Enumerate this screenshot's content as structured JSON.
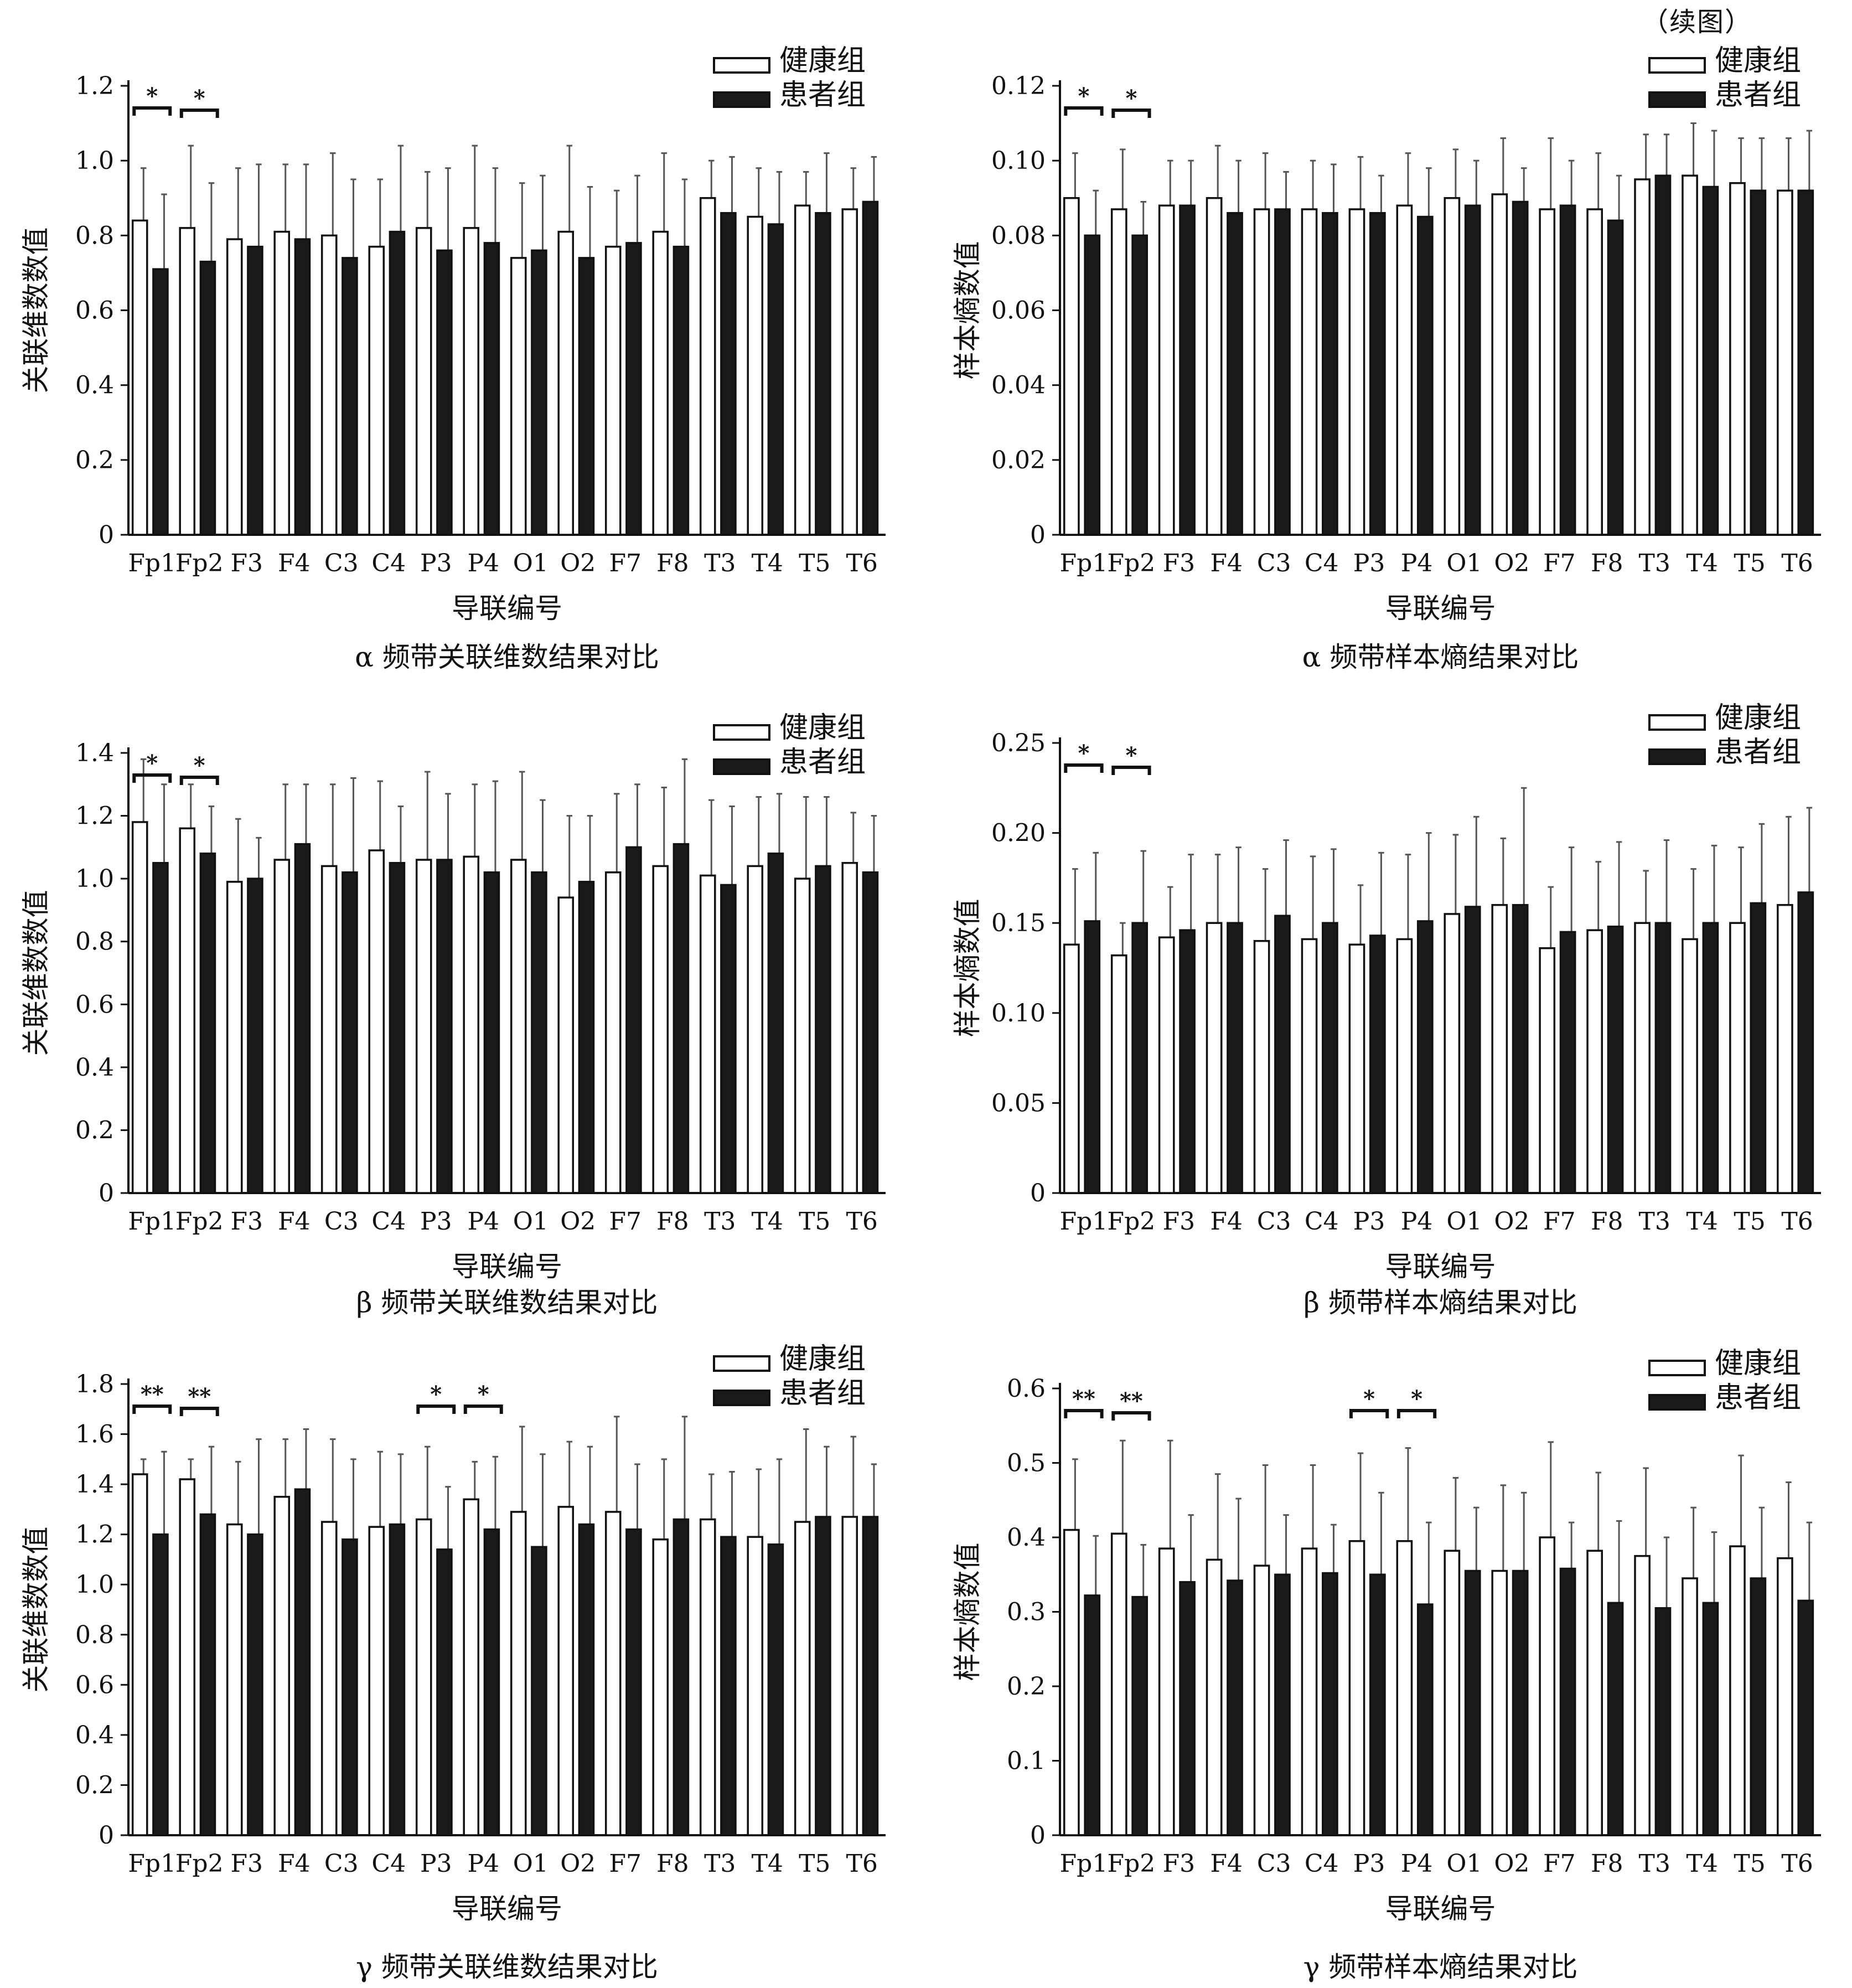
{
  "figure_note": "（续图）",
  "legend": {
    "healthy": "健康组",
    "patient": "患者组"
  },
  "colors": {
    "healthy": "#ffffff",
    "patient": "#1a1a1a",
    "error": "#555555",
    "axis": "#111111"
  },
  "xlabel": "导联编号",
  "chart_data": [
    {
      "type": "bar",
      "title": "α 频带关联维数结果对比",
      "xlabel": "导联编号",
      "ylabel": "关联维数数值",
      "ylim": [
        0,
        1.2
      ],
      "yticks": [
        "0",
        "0.2",
        "0.4",
        "0.6",
        "0.8",
        "1.0",
        "1.2"
      ],
      "ytick_values": [
        0,
        0.2,
        0.4,
        0.6,
        0.8,
        1.0,
        1.2
      ],
      "categories": [
        "Fp1",
        "Fp2",
        "F3",
        "F4",
        "C3",
        "C4",
        "P3",
        "P4",
        "O1",
        "O2",
        "F7",
        "F8",
        "T3",
        "T4",
        "T5",
        "T6"
      ],
      "series": [
        {
          "name": "健康组",
          "values": [
            0.84,
            0.82,
            0.79,
            0.81,
            0.8,
            0.77,
            0.82,
            0.82,
            0.74,
            0.81,
            0.77,
            0.81,
            0.9,
            0.85,
            0.88,
            0.87
          ],
          "errors": [
            0.14,
            0.22,
            0.19,
            0.18,
            0.22,
            0.18,
            0.15,
            0.22,
            0.2,
            0.23,
            0.15,
            0.21,
            0.1,
            0.13,
            0.09,
            0.11
          ]
        },
        {
          "name": "患者组",
          "values": [
            0.71,
            0.73,
            0.77,
            0.79,
            0.74,
            0.81,
            0.76,
            0.78,
            0.76,
            0.74,
            0.78,
            0.77,
            0.86,
            0.83,
            0.86,
            0.89
          ],
          "errors": [
            0.2,
            0.21,
            0.22,
            0.2,
            0.21,
            0.23,
            0.22,
            0.2,
            0.2,
            0.19,
            0.18,
            0.18,
            0.15,
            0.14,
            0.16,
            0.12
          ]
        }
      ],
      "significance": [
        {
          "category": "Fp1",
          "label": "*"
        },
        {
          "category": "Fp2",
          "label": "*"
        }
      ]
    },
    {
      "type": "bar",
      "title": "α 频带样本熵结果对比",
      "xlabel": "导联编号",
      "ylabel": "样本熵数值",
      "ylim": [
        0,
        0.12
      ],
      "yticks": [
        "0",
        "0.02",
        "0.04",
        "0.06",
        "0.08",
        "0.10",
        "0.12"
      ],
      "ytick_values": [
        0,
        0.02,
        0.04,
        0.06,
        0.08,
        0.1,
        0.12
      ],
      "categories": [
        "Fp1",
        "Fp2",
        "F3",
        "F4",
        "C3",
        "C4",
        "P3",
        "P4",
        "O1",
        "O2",
        "F7",
        "F8",
        "T3",
        "T4",
        "T5",
        "T6"
      ],
      "series": [
        {
          "name": "健康组",
          "values": [
            0.09,
            0.087,
            0.088,
            0.09,
            0.087,
            0.087,
            0.087,
            0.088,
            0.09,
            0.091,
            0.087,
            0.087,
            0.095,
            0.096,
            0.094,
            0.092
          ],
          "errors": [
            0.012,
            0.016,
            0.012,
            0.014,
            0.015,
            0.013,
            0.014,
            0.014,
            0.013,
            0.015,
            0.019,
            0.015,
            0.012,
            0.014,
            0.012,
            0.014
          ]
        },
        {
          "name": "患者组",
          "values": [
            0.08,
            0.08,
            0.088,
            0.086,
            0.087,
            0.086,
            0.086,
            0.085,
            0.088,
            0.089,
            0.088,
            0.084,
            0.096,
            0.093,
            0.092,
            0.092
          ],
          "errors": [
            0.012,
            0.009,
            0.012,
            0.014,
            0.01,
            0.013,
            0.01,
            0.013,
            0.012,
            0.009,
            0.012,
            0.012,
            0.011,
            0.015,
            0.014,
            0.016
          ]
        }
      ],
      "significance": [
        {
          "category": "Fp1",
          "label": "*"
        },
        {
          "category": "Fp2",
          "label": "*"
        }
      ]
    },
    {
      "type": "bar",
      "title": "β 频带关联维数结果对比",
      "xlabel": "导联编号",
      "ylabel": "关联维数数值",
      "ylim": [
        0,
        1.4
      ],
      "yticks": [
        "0",
        "0.2",
        "0.4",
        "0.6",
        "0.8",
        "1.0",
        "1.2",
        "1.4"
      ],
      "ytick_values": [
        0,
        0.2,
        0.4,
        0.6,
        0.8,
        1.0,
        1.2,
        1.4
      ],
      "categories": [
        "Fp1",
        "Fp2",
        "F3",
        "F4",
        "C3",
        "C4",
        "P3",
        "P4",
        "O1",
        "O2",
        "F7",
        "F8",
        "T3",
        "T4",
        "T5",
        "T6"
      ],
      "series": [
        {
          "name": "健康组",
          "values": [
            1.18,
            1.16,
            0.99,
            1.06,
            1.04,
            1.09,
            1.06,
            1.07,
            1.06,
            0.94,
            1.02,
            1.04,
            1.01,
            1.04,
            1.0,
            1.05
          ],
          "errors": [
            0.2,
            0.14,
            0.2,
            0.24,
            0.26,
            0.22,
            0.28,
            0.23,
            0.28,
            0.26,
            0.25,
            0.25,
            0.24,
            0.22,
            0.26,
            0.16
          ]
        },
        {
          "name": "患者组",
          "values": [
            1.05,
            1.08,
            1.0,
            1.11,
            1.02,
            1.05,
            1.06,
            1.02,
            1.02,
            0.99,
            1.1,
            1.11,
            0.98,
            1.08,
            1.04,
            1.02
          ],
          "errors": [
            0.25,
            0.15,
            0.13,
            0.19,
            0.3,
            0.18,
            0.21,
            0.29,
            0.23,
            0.21,
            0.2,
            0.27,
            0.25,
            0.19,
            0.22,
            0.18
          ]
        }
      ],
      "significance": [
        {
          "category": "Fp1",
          "label": "*"
        },
        {
          "category": "Fp2",
          "label": "*"
        }
      ]
    },
    {
      "type": "bar",
      "title": "β 频带样本熵结果对比",
      "xlabel": "导联编号",
      "ylabel": "样本熵数值",
      "ylim": [
        0,
        0.25
      ],
      "yticks": [
        "0",
        "0.05",
        "0.10",
        "0.15",
        "0.20",
        "0.25"
      ],
      "ytick_values": [
        0,
        0.05,
        0.1,
        0.15,
        0.2,
        0.25
      ],
      "categories": [
        "Fp1",
        "Fp2",
        "F3",
        "F4",
        "C3",
        "C4",
        "P3",
        "P4",
        "O1",
        "O2",
        "F7",
        "F8",
        "T3",
        "T4",
        "T5",
        "T6"
      ],
      "series": [
        {
          "name": "健康组",
          "values": [
            0.138,
            0.132,
            0.142,
            0.15,
            0.14,
            0.141,
            0.138,
            0.141,
            0.155,
            0.16,
            0.136,
            0.146,
            0.15,
            0.141,
            0.15,
            0.16
          ],
          "errors": [
            0.042,
            0.018,
            0.028,
            0.038,
            0.04,
            0.046,
            0.033,
            0.047,
            0.044,
            0.037,
            0.034,
            0.038,
            0.029,
            0.039,
            0.042,
            0.049
          ]
        },
        {
          "name": "患者组",
          "values": [
            0.151,
            0.15,
            0.146,
            0.15,
            0.154,
            0.15,
            0.143,
            0.151,
            0.159,
            0.16,
            0.145,
            0.148,
            0.15,
            0.15,
            0.161,
            0.167
          ],
          "errors": [
            0.038,
            0.04,
            0.042,
            0.042,
            0.042,
            0.041,
            0.046,
            0.049,
            0.05,
            0.065,
            0.047,
            0.047,
            0.046,
            0.043,
            0.044,
            0.047
          ]
        }
      ],
      "significance": [
        {
          "category": "Fp1",
          "label": "*"
        },
        {
          "category": "Fp2",
          "label": "*"
        }
      ]
    },
    {
      "type": "bar",
      "title": "γ 频带关联维数结果对比",
      "xlabel": "导联编号",
      "ylabel": "关联维数数值",
      "ylim": [
        0,
        1.8
      ],
      "yticks": [
        "0",
        "0.2",
        "0.4",
        "0.6",
        "0.8",
        "1.0",
        "1.2",
        "1.4",
        "1.6",
        "1.8"
      ],
      "ytick_values": [
        0,
        0.2,
        0.4,
        0.6,
        0.8,
        1.0,
        1.2,
        1.4,
        1.6,
        1.8
      ],
      "categories": [
        "Fp1",
        "Fp2",
        "F3",
        "F4",
        "C3",
        "C4",
        "P3",
        "P4",
        "O1",
        "O2",
        "F7",
        "F8",
        "T3",
        "T4",
        "T5",
        "T6"
      ],
      "series": [
        {
          "name": "健康组",
          "values": [
            1.44,
            1.42,
            1.24,
            1.35,
            1.25,
            1.23,
            1.26,
            1.34,
            1.29,
            1.31,
            1.29,
            1.18,
            1.26,
            1.19,
            1.25,
            1.27
          ],
          "errors": [
            0.06,
            0.08,
            0.25,
            0.23,
            0.33,
            0.3,
            0.29,
            0.15,
            0.34,
            0.26,
            0.38,
            0.32,
            0.18,
            0.27,
            0.37,
            0.32
          ]
        },
        {
          "name": "患者组",
          "values": [
            1.2,
            1.28,
            1.2,
            1.38,
            1.18,
            1.24,
            1.14,
            1.22,
            1.15,
            1.24,
            1.22,
            1.26,
            1.19,
            1.16,
            1.27,
            1.27
          ],
          "errors": [
            0.33,
            0.27,
            0.38,
            0.24,
            0.32,
            0.28,
            0.25,
            0.29,
            0.37,
            0.31,
            0.26,
            0.41,
            0.26,
            0.34,
            0.28,
            0.21
          ]
        }
      ],
      "significance": [
        {
          "category": "Fp1",
          "label": "**"
        },
        {
          "category": "Fp2",
          "label": "**"
        },
        {
          "category": "P3",
          "label": "*"
        },
        {
          "category": "P4",
          "label": "*"
        }
      ]
    },
    {
      "type": "bar",
      "title": "γ 频带样本熵结果对比",
      "xlabel": "导联编号",
      "ylabel": "样本熵数值",
      "ylim": [
        0,
        0.6
      ],
      "yticks": [
        "0",
        "0.1",
        "0.2",
        "0.3",
        "0.4",
        "0.5",
        "0.6"
      ],
      "ytick_values": [
        0,
        0.1,
        0.2,
        0.3,
        0.4,
        0.5,
        0.6
      ],
      "categories": [
        "Fp1",
        "Fp2",
        "F3",
        "F4",
        "C3",
        "C4",
        "P3",
        "P4",
        "O1",
        "O2",
        "F7",
        "F8",
        "T3",
        "T4",
        "T5",
        "T6"
      ],
      "series": [
        {
          "name": "健康组",
          "values": [
            0.41,
            0.405,
            0.385,
            0.37,
            0.362,
            0.385,
            0.395,
            0.395,
            0.382,
            0.355,
            0.4,
            0.382,
            0.375,
            0.345,
            0.388,
            0.372
          ],
          "errors": [
            0.095,
            0.125,
            0.145,
            0.115,
            0.135,
            0.112,
            0.118,
            0.125,
            0.098,
            0.115,
            0.128,
            0.105,
            0.118,
            0.095,
            0.122,
            0.102
          ]
        },
        {
          "name": "患者组",
          "values": [
            0.322,
            0.32,
            0.34,
            0.342,
            0.35,
            0.352,
            0.35,
            0.31,
            0.355,
            0.355,
            0.358,
            0.312,
            0.305,
            0.312,
            0.345,
            0.315
          ],
          "errors": [
            0.08,
            0.07,
            0.09,
            0.11,
            0.08,
            0.065,
            0.11,
            0.11,
            0.085,
            0.105,
            0.062,
            0.11,
            0.095,
            0.095,
            0.095,
            0.105
          ]
        }
      ],
      "significance": [
        {
          "category": "Fp1",
          "label": "**"
        },
        {
          "category": "Fp2",
          "label": "**"
        },
        {
          "category": "P3",
          "label": "*"
        },
        {
          "category": "P4",
          "label": "*"
        }
      ]
    }
  ]
}
